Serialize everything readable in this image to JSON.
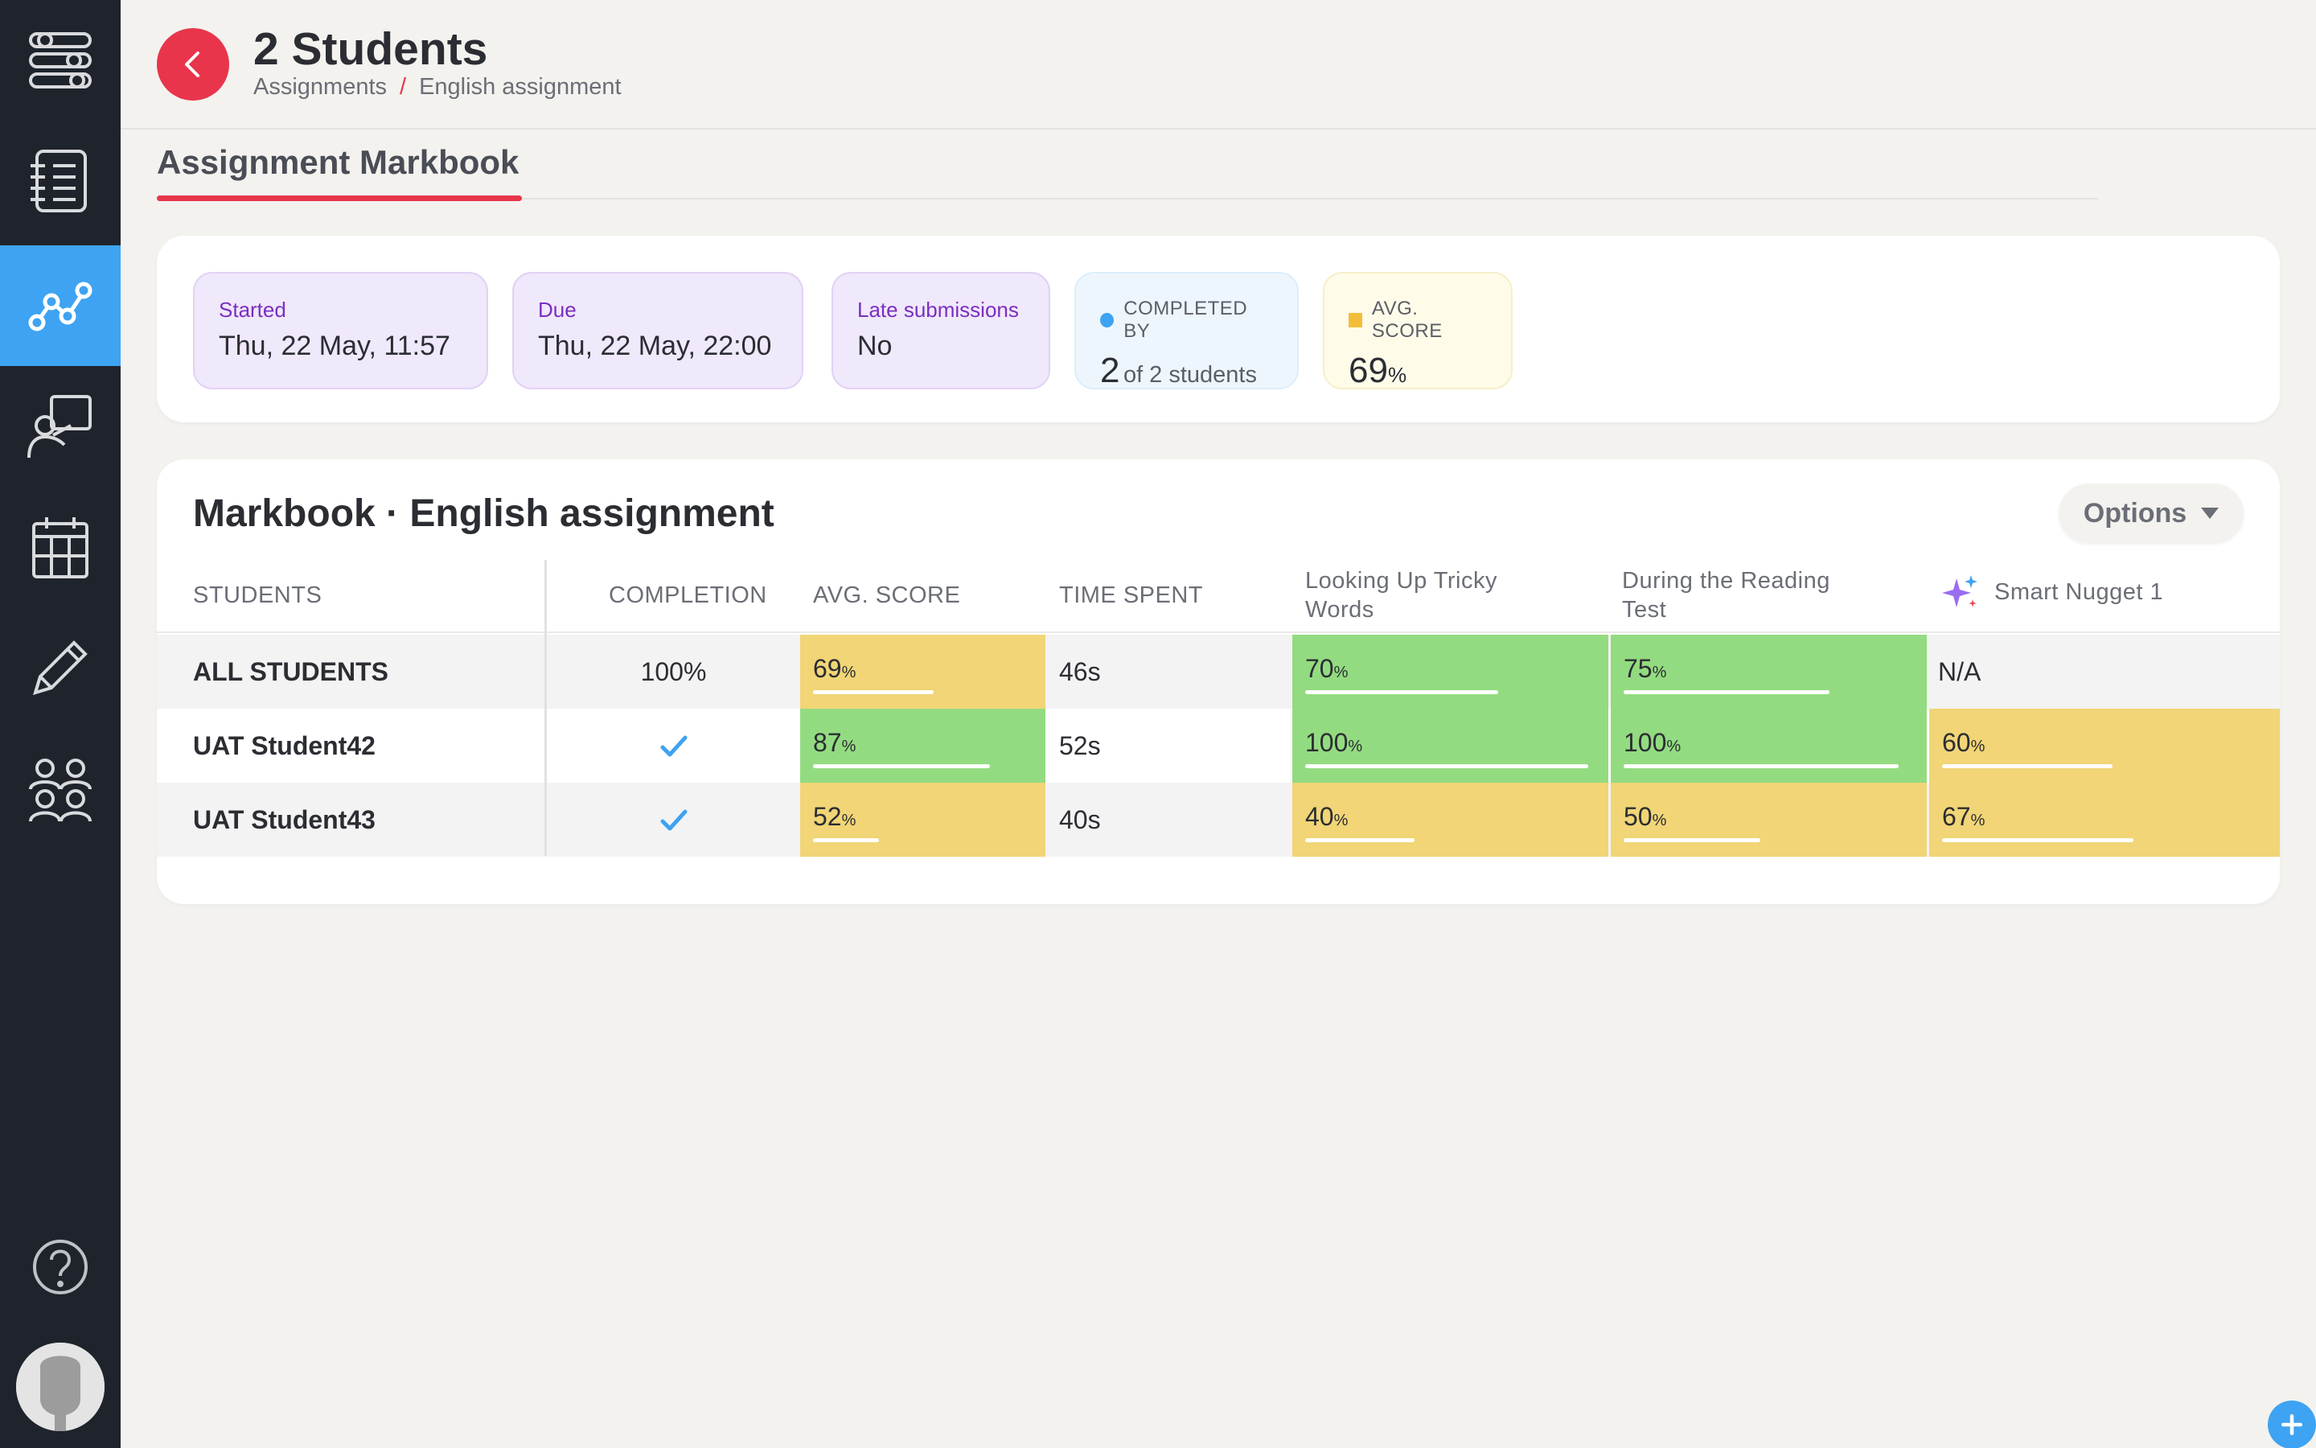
{
  "header": {
    "title": "2 Students",
    "breadcrumb": [
      "Assignments",
      "/",
      "English assignment"
    ]
  },
  "tab": {
    "label": "Assignment Markbook"
  },
  "stats": {
    "started": {
      "label": "Started",
      "value": "Thu, 22 May, 11:57"
    },
    "due": {
      "label": "Due",
      "value": "Thu, 22 May, 22:00"
    },
    "late": {
      "label": "Late submissions",
      "value": "No"
    },
    "completed": {
      "label": "COMPLETED BY",
      "count": "2",
      "suffix": "of 2 students"
    },
    "avg": {
      "label": "AVG. SCORE",
      "value": "69",
      "unit": "%"
    }
  },
  "markbook": {
    "title": "Markbook · English assignment",
    "options_label": "Options",
    "columns": {
      "students": "STUDENTS",
      "completion": "COMPLETION",
      "avg_score": "AVG. SCORE",
      "time_spent": "TIME SPENT",
      "col1": "Looking Up Tricky Words",
      "col2": "During the Reading Test",
      "col3": "Smart Nugget 1"
    },
    "rows": [
      {
        "name": "ALL STUDENTS",
        "completion": "100%",
        "avg": "69",
        "time": "46s",
        "c1": "70",
        "c2": "75",
        "c3": "N/A"
      },
      {
        "name": "UAT Student42",
        "completion": "check",
        "avg": "87",
        "time": "52s",
        "c1": "100",
        "c2": "100",
        "c3": "60"
      },
      {
        "name": "UAT Student43",
        "completion": "check",
        "avg": "52",
        "time": "40s",
        "c1": "40",
        "c2": "50",
        "c3": "67"
      }
    ],
    "percent_sign": "%"
  },
  "colors": {
    "accent": "#e8354b",
    "active_nav": "#3ea3f2",
    "score_green": "#93db80",
    "score_yellow": "#f1d576"
  },
  "icons": {
    "sidebar": [
      "sliders-icon",
      "list-icon",
      "analytics-icon",
      "teacher-board-icon",
      "calendar-icon",
      "pencil-icon",
      "group-icon",
      "help-icon"
    ]
  }
}
